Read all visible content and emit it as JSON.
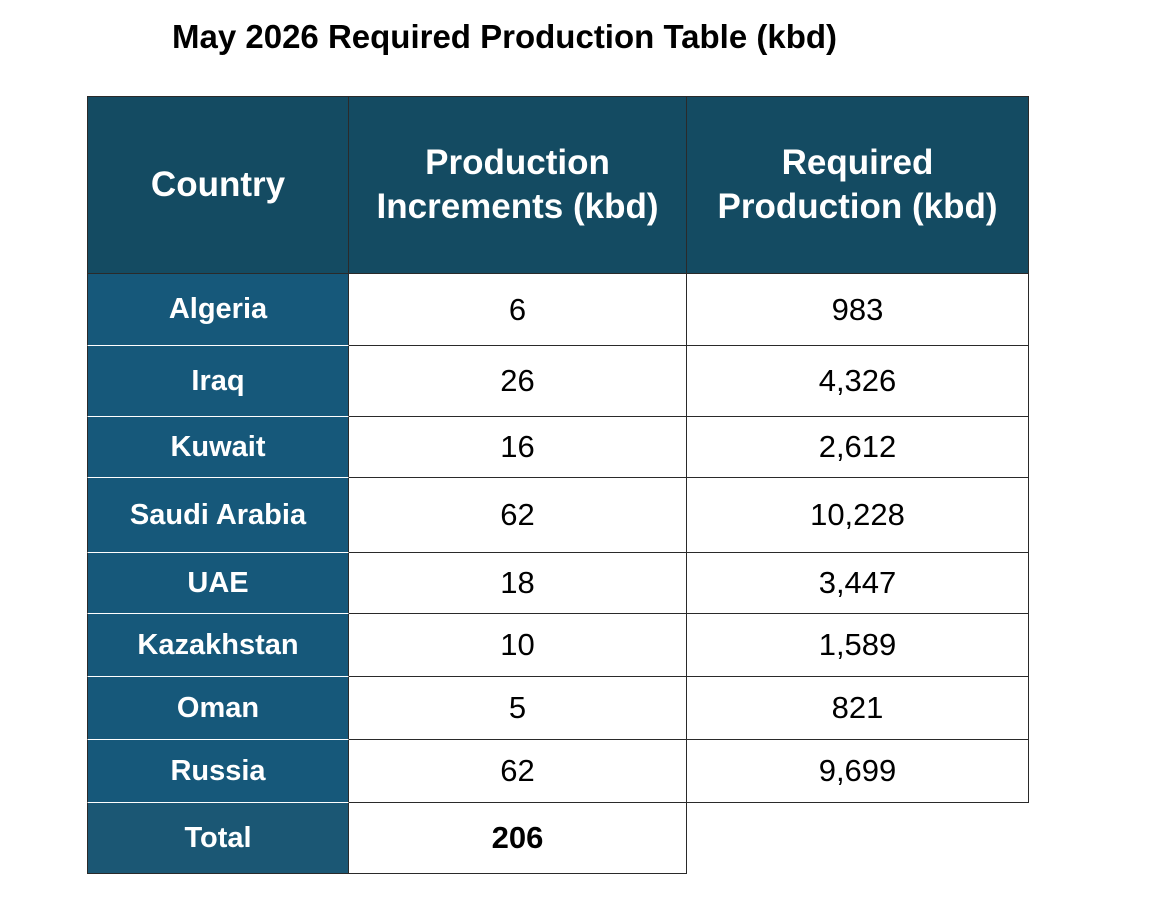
{
  "title": "May 2026 Required Production Table (kbd)",
  "table": {
    "headers": {
      "country": "Country",
      "increments_line1": "Production",
      "increments_line2": "Increments (kbd)",
      "required_line1": "Required",
      "required_line2": "Production (kbd)"
    },
    "rows": [
      {
        "country": "Algeria",
        "increment": "6",
        "required": "983"
      },
      {
        "country": "Iraq",
        "increment": "26",
        "required": "4,326"
      },
      {
        "country": "Kuwait",
        "increment": "16",
        "required": "2,612"
      },
      {
        "country": "Saudi Arabia",
        "increment": "62",
        "required": "10,228"
      },
      {
        "country": "UAE",
        "increment": "18",
        "required": "3,447"
      },
      {
        "country": "Kazakhstan",
        "increment": "10",
        "required": "1,589"
      },
      {
        "country": "Oman",
        "increment": "5",
        "required": "821"
      },
      {
        "country": "Russia",
        "increment": "62",
        "required": "9,699"
      }
    ],
    "total": {
      "label": "Total",
      "increment": "206"
    }
  },
  "colors": {
    "header_bg": "#144b62",
    "country_bg": "#16587a",
    "text_light": "#ffffff",
    "text_dark": "#000000"
  }
}
